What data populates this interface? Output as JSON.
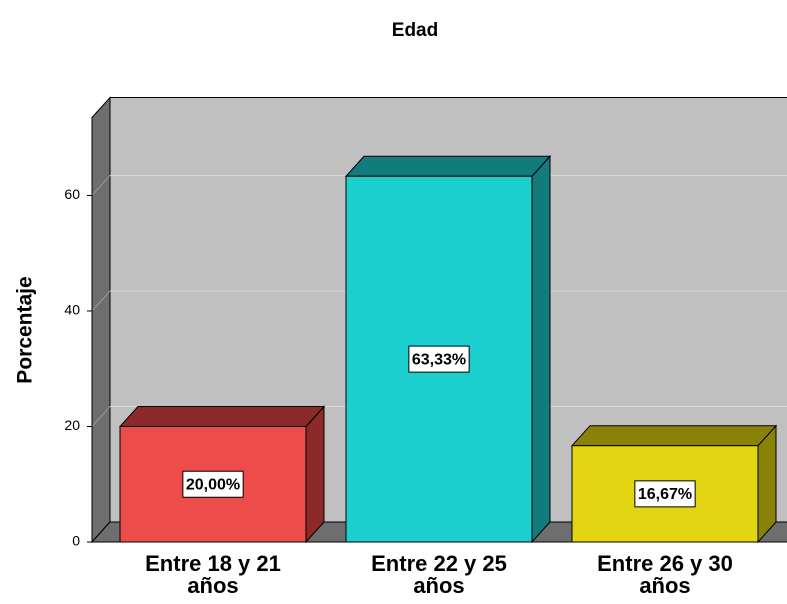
{
  "chart_data": {
    "type": "bar3d",
    "title": "Edad",
    "y_label": "Porcentaje",
    "categories": [
      "Entre 18 y 21 años",
      "Entre 22 y 25 años",
      "Entre 26 y 30 años"
    ],
    "values": [
      20,
      63.33,
      16.67
    ],
    "value_labels": [
      "20,00%",
      "63,33%",
      "16,67%"
    ],
    "colors": [
      "#ee4b4b",
      "#1ccfcf",
      "#e2d514"
    ],
    "side_colors": [
      "#8c2a2a",
      "#127b7b",
      "#8a8208"
    ],
    "ylim": [
      0,
      73.5
    ],
    "yticks": [
      0,
      20,
      40,
      60
    ],
    "grid": true
  }
}
